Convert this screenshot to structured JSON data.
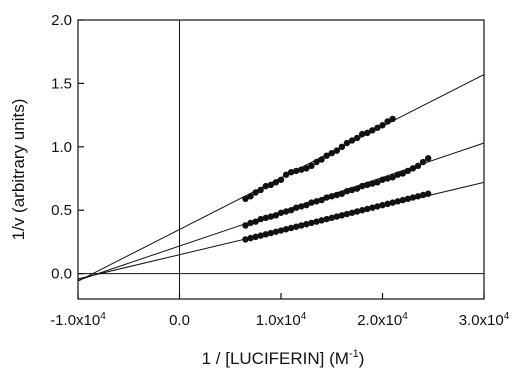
{
  "chart_data": {
    "type": "scatter",
    "title": "",
    "xlabel": "1 / [LUCIFERIN] (M",
    "xlabel_sup": "-1",
    "xlabel_tail": ")",
    "ylabel": "1/v (arbitrary units)",
    "xlim": [
      -10000,
      30000
    ],
    "ylim": [
      -0.2,
      2.0
    ],
    "xticks": [
      {
        "value": -10000,
        "label_base": "-1.0x10",
        "label_exp": "4"
      },
      {
        "value": 0,
        "label_base": "0.0",
        "label_exp": ""
      },
      {
        "value": 10000,
        "label_base": "1.0x10",
        "label_exp": "4"
      },
      {
        "value": 20000,
        "label_base": "2.0x10",
        "label_exp": "4"
      },
      {
        "value": 30000,
        "label_base": "3.0x10",
        "label_exp": "4"
      }
    ],
    "yticks": [
      {
        "value": 0.0,
        "label": "0.0"
      },
      {
        "value": 0.5,
        "label": "0.5"
      },
      {
        "value": 1.0,
        "label": "1.0"
      },
      {
        "value": 1.5,
        "label": "1.5"
      },
      {
        "value": 2.0,
        "label": "2.0"
      }
    ],
    "reference_lines": [
      {
        "orientation": "vertical",
        "value": 0
      },
      {
        "orientation": "horizontal",
        "value": 0
      }
    ],
    "grid": false,
    "legend": "none",
    "marker_color": "#111111",
    "line_color": "#111111",
    "series": [
      {
        "fit_line": {
          "x_start": -11000,
          "y_start": -0.1,
          "x_end": 30000,
          "y_end": 1.57
        },
        "points": [
          [
            6500,
            0.59
          ],
          [
            7000,
            0.61
          ],
          [
            7500,
            0.64
          ],
          [
            8000,
            0.66
          ],
          [
            8500,
            0.69
          ],
          [
            9000,
            0.7
          ],
          [
            9500,
            0.72
          ],
          [
            10000,
            0.74
          ],
          [
            10500,
            0.78
          ],
          [
            11000,
            0.8
          ],
          [
            11500,
            0.81
          ],
          [
            12000,
            0.82
          ],
          [
            12500,
            0.83
          ],
          [
            13000,
            0.85
          ],
          [
            13500,
            0.88
          ],
          [
            14000,
            0.9
          ],
          [
            14500,
            0.93
          ],
          [
            15000,
            0.95
          ],
          [
            15500,
            0.97
          ],
          [
            16000,
            1.0
          ],
          [
            16500,
            1.03
          ],
          [
            17000,
            1.05
          ],
          [
            17500,
            1.07
          ],
          [
            18000,
            1.1
          ],
          [
            18500,
            1.11
          ],
          [
            19000,
            1.13
          ],
          [
            19500,
            1.15
          ],
          [
            20000,
            1.17
          ],
          [
            20500,
            1.2
          ],
          [
            21000,
            1.22
          ]
        ]
      },
      {
        "fit_line": {
          "x_start": -11000,
          "y_start": -0.08,
          "x_end": 30000,
          "y_end": 1.03
        },
        "points": [
          [
            6500,
            0.38
          ],
          [
            7000,
            0.4
          ],
          [
            7500,
            0.41
          ],
          [
            8000,
            0.43
          ],
          [
            8500,
            0.44
          ],
          [
            9000,
            0.45
          ],
          [
            9500,
            0.46
          ],
          [
            10000,
            0.48
          ],
          [
            10500,
            0.49
          ],
          [
            11000,
            0.5
          ],
          [
            11500,
            0.52
          ],
          [
            12000,
            0.53
          ],
          [
            12500,
            0.54
          ],
          [
            13000,
            0.56
          ],
          [
            13500,
            0.57
          ],
          [
            14000,
            0.58
          ],
          [
            14500,
            0.6
          ],
          [
            15000,
            0.61
          ],
          [
            15500,
            0.62
          ],
          [
            16000,
            0.63
          ],
          [
            16500,
            0.65
          ],
          [
            17000,
            0.66
          ],
          [
            17500,
            0.67
          ],
          [
            18000,
            0.69
          ],
          [
            18500,
            0.7
          ],
          [
            19000,
            0.71
          ],
          [
            19500,
            0.72
          ],
          [
            20000,
            0.74
          ],
          [
            20500,
            0.75
          ],
          [
            21000,
            0.76
          ],
          [
            21500,
            0.78
          ],
          [
            22000,
            0.79
          ],
          [
            22500,
            0.81
          ],
          [
            23000,
            0.83
          ],
          [
            23500,
            0.85
          ],
          [
            24000,
            0.88
          ],
          [
            24500,
            0.91
          ]
        ]
      },
      {
        "fit_line": {
          "x_start": -11000,
          "y_start": -0.06,
          "x_end": 30000,
          "y_end": 0.72
        },
        "points": [
          [
            6500,
            0.27
          ],
          [
            7000,
            0.28
          ],
          [
            7500,
            0.29
          ],
          [
            8000,
            0.3
          ],
          [
            8500,
            0.31
          ],
          [
            9000,
            0.32
          ],
          [
            9500,
            0.33
          ],
          [
            10000,
            0.34
          ],
          [
            10500,
            0.35
          ],
          [
            11000,
            0.36
          ],
          [
            11500,
            0.37
          ],
          [
            12000,
            0.38
          ],
          [
            12500,
            0.39
          ],
          [
            13000,
            0.4
          ],
          [
            13500,
            0.41
          ],
          [
            14000,
            0.42
          ],
          [
            14500,
            0.43
          ],
          [
            15000,
            0.44
          ],
          [
            15500,
            0.45
          ],
          [
            16000,
            0.46
          ],
          [
            16500,
            0.47
          ],
          [
            17000,
            0.48
          ],
          [
            17500,
            0.49
          ],
          [
            18000,
            0.5
          ],
          [
            18500,
            0.51
          ],
          [
            19000,
            0.52
          ],
          [
            19500,
            0.53
          ],
          [
            20000,
            0.54
          ],
          [
            20500,
            0.55
          ],
          [
            21000,
            0.56
          ],
          [
            21500,
            0.57
          ],
          [
            22000,
            0.58
          ],
          [
            22500,
            0.59
          ],
          [
            23000,
            0.6
          ],
          [
            23500,
            0.61
          ],
          [
            24000,
            0.62
          ],
          [
            24500,
            0.63
          ]
        ]
      }
    ]
  }
}
